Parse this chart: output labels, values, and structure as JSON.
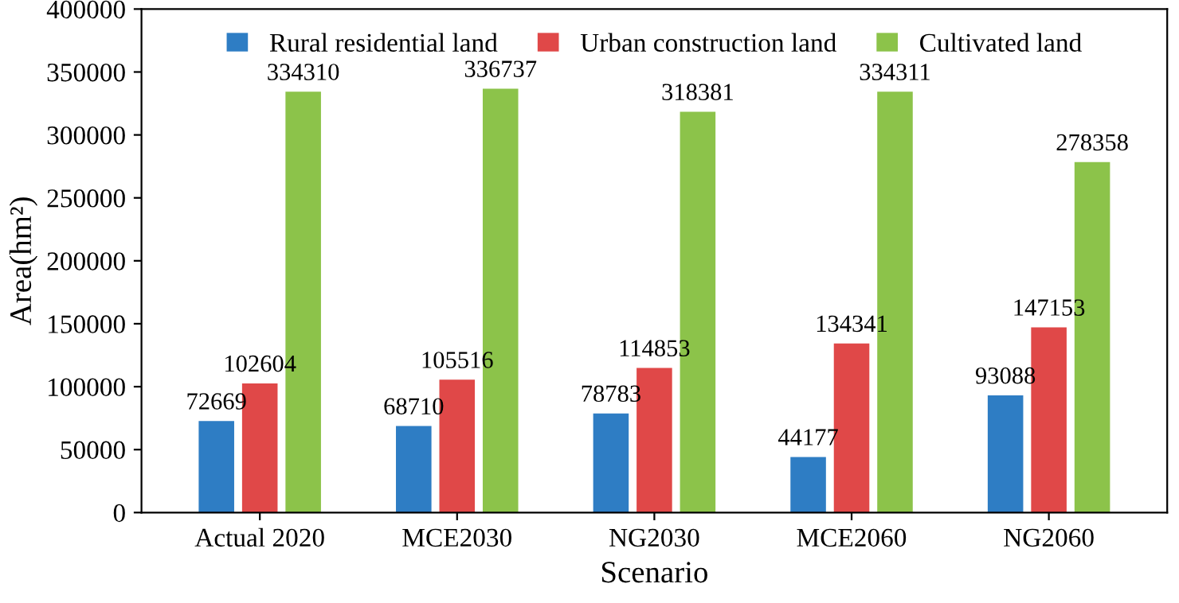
{
  "chart_data": {
    "type": "bar",
    "xlabel": "Scenario",
    "ylabel": "Area(hm²)",
    "categories": [
      "Actual 2020",
      "MCE2030",
      "NG2030",
      "MCE2060",
      "NG2060"
    ],
    "series": [
      {
        "name": "Rural residential land",
        "color": "#2e7dc4",
        "values": [
          72669,
          68710,
          78783,
          44177,
          93088
        ]
      },
      {
        "name": "Urban construction land",
        "color": "#e04848",
        "values": [
          102604,
          105516,
          114853,
          134341,
          147153
        ]
      },
      {
        "name": "Cultivated land",
        "color": "#8cc34a",
        "values": [
          334310,
          336737,
          318381,
          334311,
          278358
        ]
      }
    ],
    "ylim": [
      0,
      400000
    ],
    "yticks": [
      0,
      50000,
      100000,
      150000,
      200000,
      250000,
      300000,
      350000,
      400000
    ],
    "data_labels": true,
    "grid": false,
    "legend": "top"
  }
}
